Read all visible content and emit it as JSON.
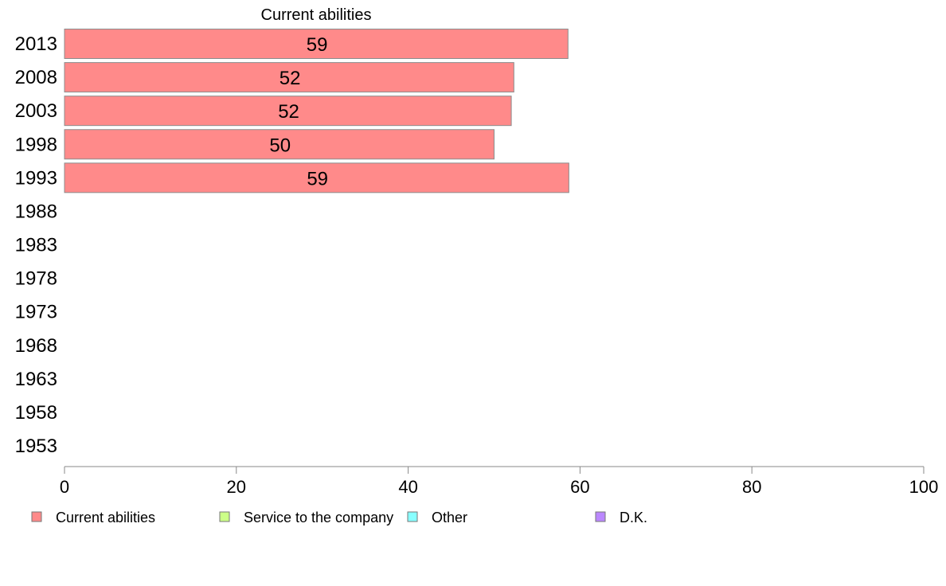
{
  "chart_data": {
    "type": "bar",
    "orientation": "horizontal",
    "title": "Current abilities",
    "categories": [
      "2013",
      "2008",
      "2003",
      "1998",
      "1993",
      "1988",
      "1983",
      "1978",
      "1973",
      "1968",
      "1963",
      "1958",
      "1953"
    ],
    "series": [
      {
        "name": "Current abilities",
        "color": "#ff8a8a",
        "values": [
          58.6,
          52.3,
          52.0,
          50.0,
          58.7,
          null,
          null,
          null,
          null,
          null,
          null,
          null,
          null
        ],
        "data_labels": [
          "59",
          "52",
          "52",
          "50",
          "59",
          "",
          "",
          "",
          "",
          "",
          "",
          "",
          ""
        ]
      }
    ],
    "xlim": [
      0,
      100
    ],
    "xticks": [
      0,
      20,
      40,
      60,
      80,
      100
    ],
    "grid": false,
    "legend": {
      "placement": "bottom",
      "entries": [
        {
          "label": "Current abilities",
          "color": "#ff8a8a"
        },
        {
          "label": "Service to the company",
          "color": "#ccff88"
        },
        {
          "label": "Other",
          "color": "#88ffff"
        },
        {
          "label": "D.K.",
          "color": "#bb88ff"
        }
      ]
    }
  }
}
